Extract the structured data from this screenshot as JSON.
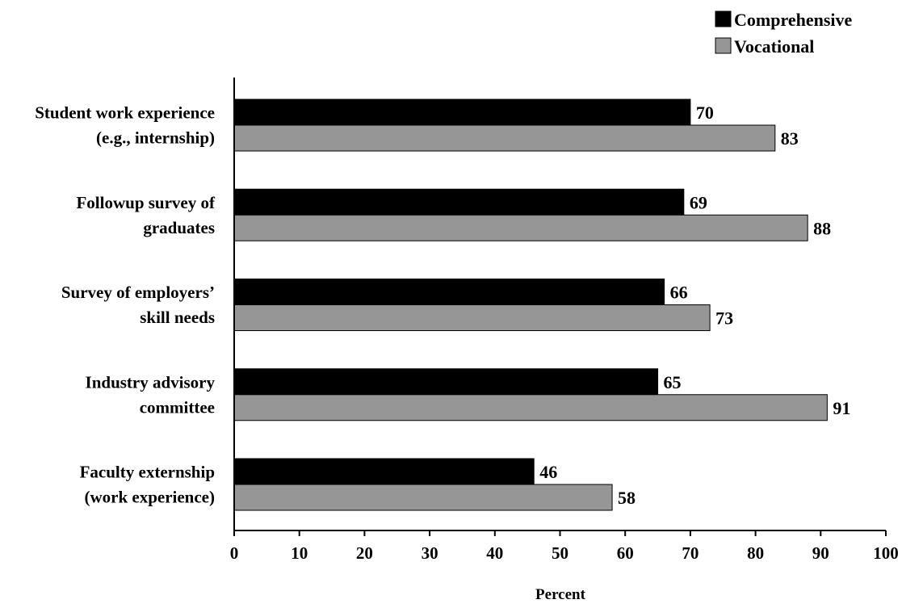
{
  "chart_data": {
    "type": "bar",
    "orientation": "horizontal",
    "title": "",
    "xlabel": "Percent",
    "ylabel": "",
    "xlim": [
      0,
      100
    ],
    "xticks": [
      0,
      10,
      20,
      30,
      40,
      50,
      60,
      70,
      80,
      90,
      100
    ],
    "grid": false,
    "legend_position": "top-right",
    "categories": [
      [
        "Student work experience",
        "(e.g., internship)"
      ],
      [
        "Followup survey of",
        "graduates"
      ],
      [
        "Survey of employers’",
        "skill needs"
      ],
      [
        "Industry advisory",
        "committee"
      ],
      [
        "Faculty externship",
        "(work experience)"
      ]
    ],
    "series": [
      {
        "name": "Comprehensive",
        "color": "#000000",
        "values": [
          70,
          69,
          66,
          65,
          46
        ]
      },
      {
        "name": "Vocational",
        "color": "#969696",
        "values": [
          83,
          88,
          73,
          91,
          58
        ]
      }
    ]
  }
}
